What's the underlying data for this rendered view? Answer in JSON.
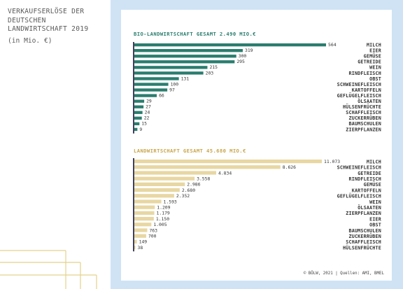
{
  "page": {
    "title": "VERKAUFSERLÖSE DER DEUTSCHEN LANDWIRTSCHAFT 2019",
    "unit": "(in Mio. €)",
    "source": "© BÖLW, 2021 | Quellen: AMI, BMEL"
  },
  "colors": {
    "bio": "#2a7d6e",
    "total": "#e8d7a3",
    "bio_title": "#2a7d6e",
    "total_title": "#c9a64b",
    "axis": "#2a2a4a",
    "panel": "#cfe3f5",
    "deco": "#e4d28a"
  },
  "chart_data": [
    {
      "type": "bar",
      "orientation": "horizontal",
      "title": "BIO-LANDWIRTSCHAFT GESAMT 2.490 MIO.€",
      "categories": [
        "MILCH",
        "EIER",
        "GEMÜSE",
        "GETREIDE",
        "WEIN",
        "RINDFLEISCH",
        "OBST",
        "SCHWEINEFLEISCH",
        "KARTOFFELN",
        "GEFLÜGELFLEISCH",
        "ÖLSAATEN",
        "HÜLSENFRÜCHTE",
        "SCHAFFLEISCH",
        "ZUCKERRÜBEN",
        "BAUMSCHULEN",
        "ZIERPFLANZEN"
      ],
      "values": [
        564,
        319,
        300,
        295,
        215,
        203,
        131,
        100,
        97,
        66,
        29,
        27,
        24,
        22,
        15,
        9
      ],
      "value_labels": [
        "564",
        "319",
        "300",
        "295",
        "215",
        "203",
        "131",
        "100",
        "97",
        "66",
        "29",
        "27",
        "24",
        "22",
        "15",
        "9"
      ]
    },
    {
      "type": "bar",
      "orientation": "horizontal",
      "title": "LANDWIRTSCHAFT GESAMT 45.680 MIO.€",
      "categories": [
        "MILCH",
        "SCHWEINEFLEISCH",
        "GETREIDE",
        "RINDFLEISCH",
        "GEMÜSE",
        "KARTOFFELN",
        "GEFLÜGELFLEISCH",
        "WEIN",
        "ÖLSAATEN",
        "ZIERPFLANZEN",
        "EIER",
        "OBST",
        "BAUMSCHULEN",
        "ZUCKERRÜBEN",
        "SCHAFFLEISCH",
        "HÜLSENFRÜCHTE"
      ],
      "values": [
        11073,
        8626,
        4834,
        3558,
        2986,
        2680,
        2352,
        1593,
        1209,
        1179,
        1150,
        1005,
        763,
        700,
        149,
        38
      ],
      "value_labels": [
        "11.073",
        "8.626",
        "4.834",
        "3.558",
        "2.986",
        "2.680",
        "2.352",
        "1.593",
        "1.209",
        "1.179",
        "1.150",
        "1.005",
        "763",
        "700",
        "149",
        "38"
      ]
    }
  ]
}
